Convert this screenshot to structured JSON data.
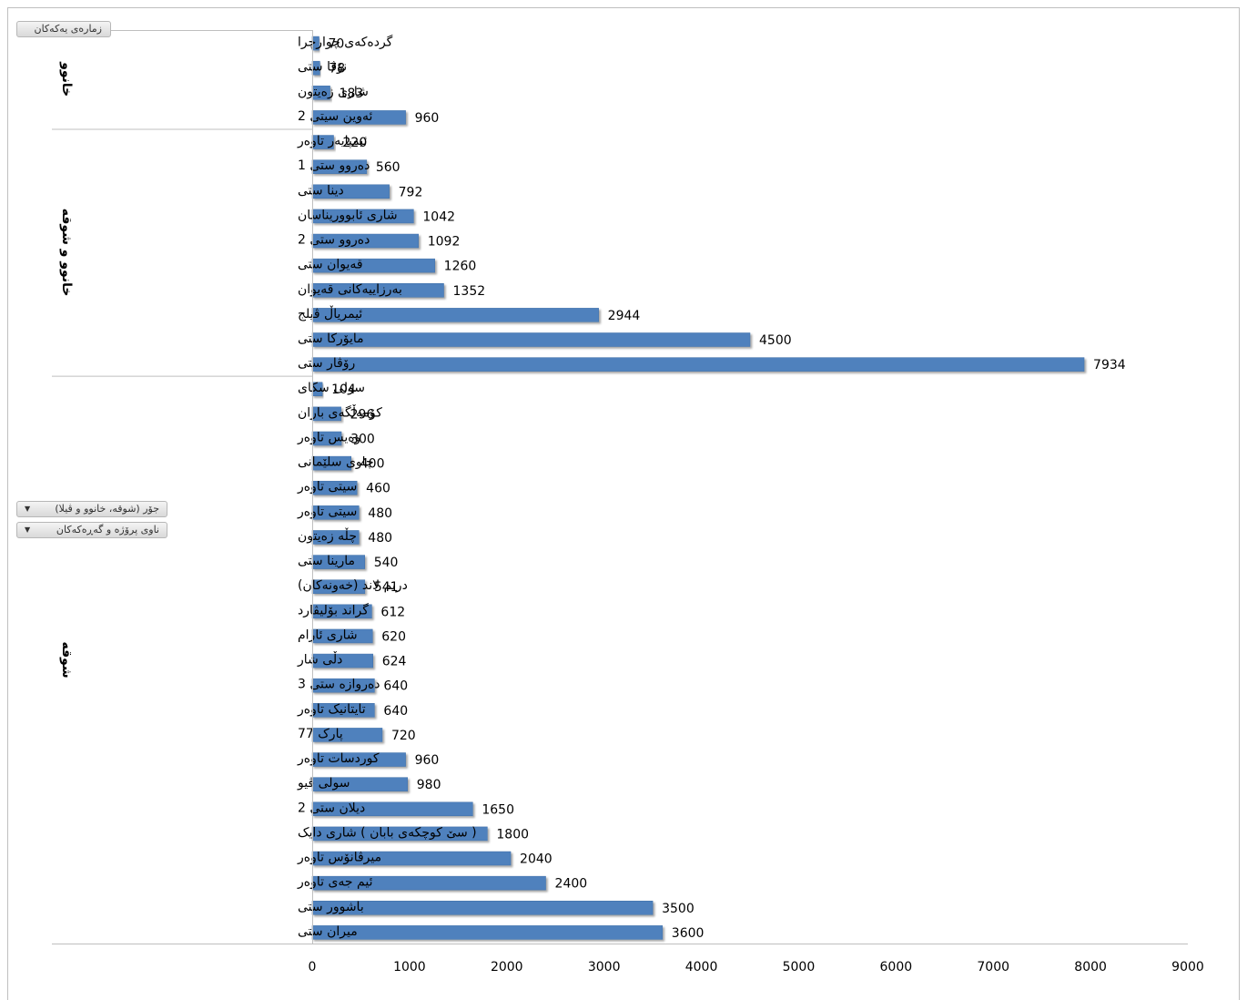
{
  "field_buttons": {
    "values": "زمارەی یەکەکان",
    "type": "جۆر (شوقە، خانوو و ڤیلا)",
    "name": "ناوی پرۆژە و گەڕەکەکان",
    "dropdown_icon": "caret-down-icon"
  },
  "colors": {
    "bar": "#4f81bd",
    "bar_edge": "#3f6fa8",
    "axis": "#bfbfbf"
  },
  "chart_data": {
    "type": "bar",
    "orientation": "horizontal",
    "xlim": [
      0,
      9000
    ],
    "x_ticks": [
      "0",
      "1000",
      "2000",
      "3000",
      "4000",
      "5000",
      "6000",
      "7000",
      "8000",
      "9000"
    ],
    "grid": false,
    "legend": "none",
    "groups": [
      {
        "name": "خانوو",
        "categories": [
          "گردەکەی چوارچرا",
          "نۆڤا ستی",
          "شاری زەیتون",
          "ئەوین سیتی 2"
        ],
        "values": [
          70,
          78,
          183,
          960
        ]
      },
      {
        "name": "خانوو و شوقە",
        "categories": [
          "ئیمپایەر تاوەر",
          "دەروو ستی 1",
          "دینا ستی",
          "شاری ئابووریناسان",
          "دەروو ستی 2",
          "قەیوان ستی",
          "بەرزاییەکانی قەیوان",
          "ئیمریاڵ ڤیلج",
          "مایۆرکا ستی",
          "رۆڤار ستی"
        ],
        "values": [
          220,
          560,
          792,
          1042,
          1092,
          1260,
          1352,
          2944,
          4500,
          7934
        ]
      },
      {
        "name": "شوقە",
        "categories": [
          "سولی سکای",
          "کۆمەڵگەی باران",
          "وەیس تاوەر",
          "چاوی سلێمانی",
          "سیتی تاوەر",
          "سیتی تاوەر",
          "چڵە زەیتون",
          "مارینا ستی",
          "دریم لاند (خەونەکان)",
          "گراند بۆلیڤارد",
          "شاری ئارام",
          "دڵی شار",
          "دەروازە ستی 3",
          "تایتانیک تاوەر",
          "پارک 77",
          "کوردسات تاوەر",
          "سولی ڤیو",
          "دیلان ستی 2",
          "( سێ کوچکەی بابان ) شاری دایک",
          "میرڤانۆس تاوەر",
          "ئیم جەی تاوەر",
          "باشوور ستی",
          "میران ستی"
        ],
        "values": [
          104,
          296,
          300,
          400,
          460,
          480,
          480,
          540,
          541,
          612,
          620,
          624,
          640,
          640,
          720,
          960,
          980,
          1650,
          1800,
          2040,
          2400,
          3500,
          3600
        ]
      }
    ]
  }
}
